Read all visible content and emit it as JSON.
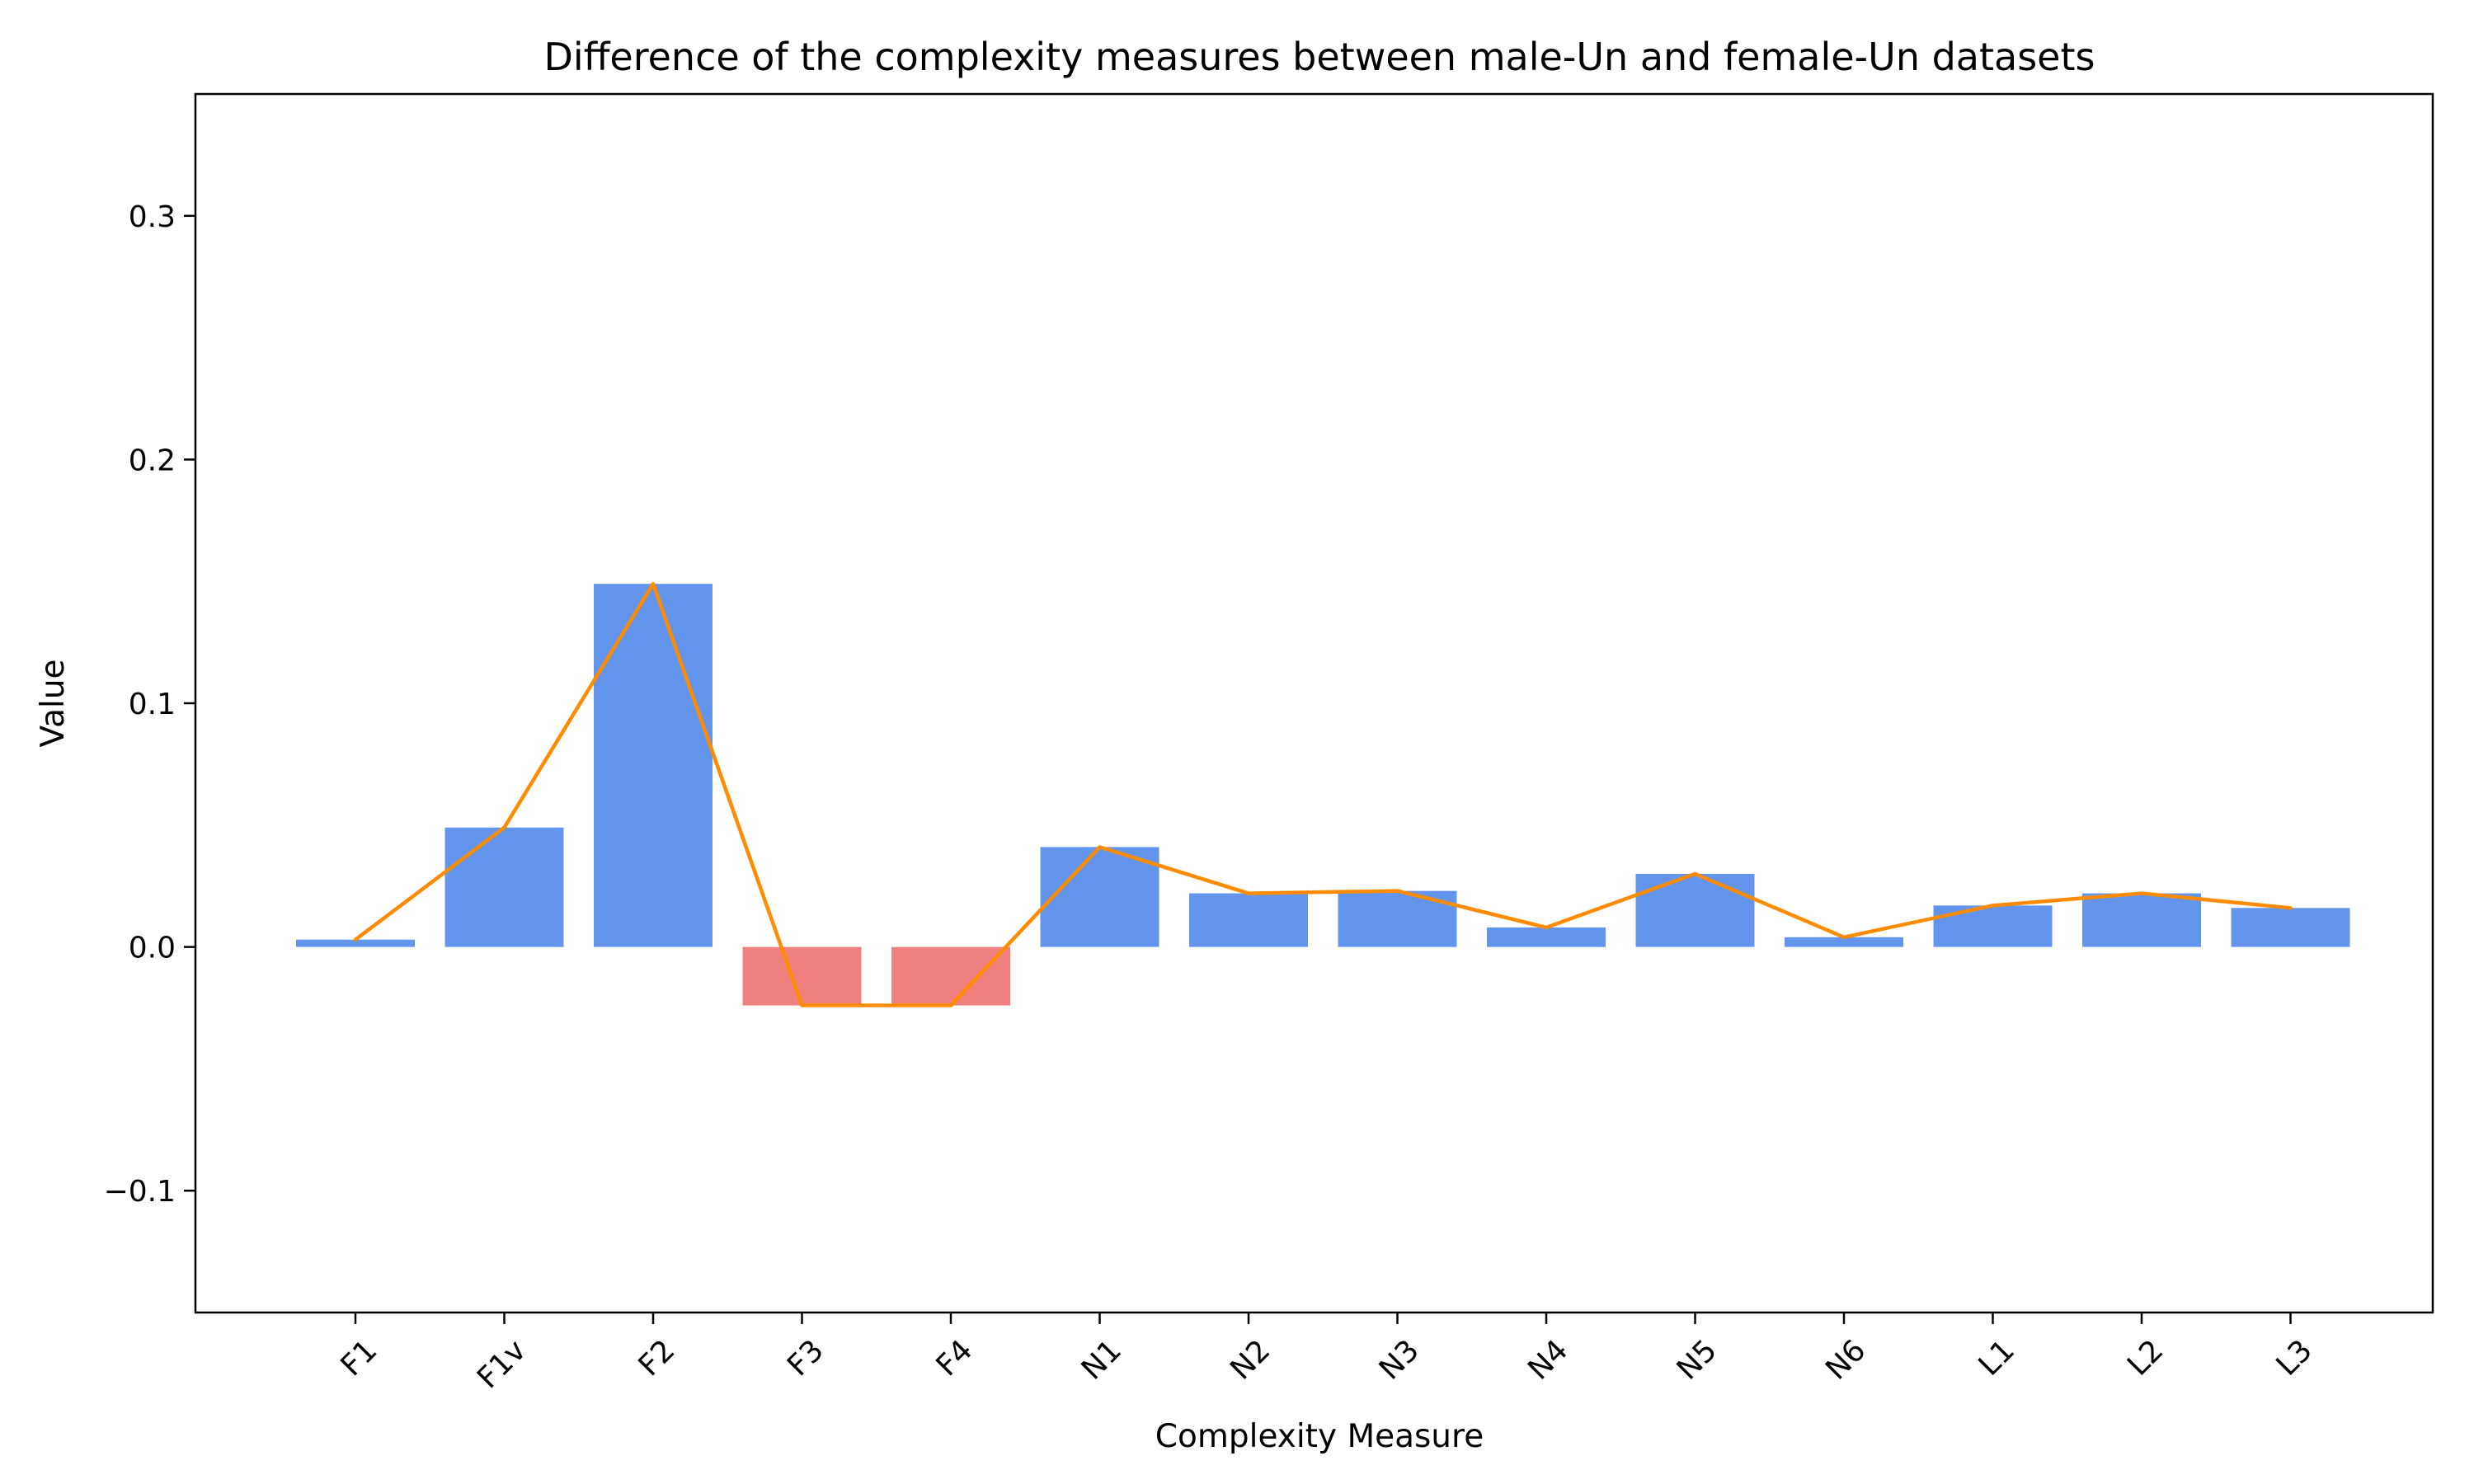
{
  "chart_data": {
    "type": "bar",
    "title": "Difference of the complexity measures between male-Un and female-Un datasets",
    "xlabel": "Complexity Measure",
    "ylabel": "Value",
    "categories": [
      "F1",
      "F1v",
      "F2",
      "F3",
      "F4",
      "N1",
      "N2",
      "N3",
      "N4",
      "N5",
      "N6",
      "L1",
      "L2",
      "L3"
    ],
    "values": [
      0.003,
      0.049,
      0.149,
      -0.024,
      -0.024,
      0.041,
      0.022,
      0.023,
      0.008,
      0.03,
      0.004,
      0.017,
      0.022,
      0.016
    ],
    "ylim": [
      -0.15,
      0.35
    ],
    "yticks": [
      -0.1,
      0.0,
      0.1,
      0.2,
      0.3
    ],
    "ytick_labels": [
      "−0.1",
      "0.0",
      "0.1",
      "0.2",
      "0.3"
    ],
    "grid": false,
    "overlay_line": true,
    "colors": {
      "positive_bar": "#6495ED",
      "negative_bar": "#F08080",
      "line": "#FF8C00",
      "axis": "#000000"
    }
  }
}
